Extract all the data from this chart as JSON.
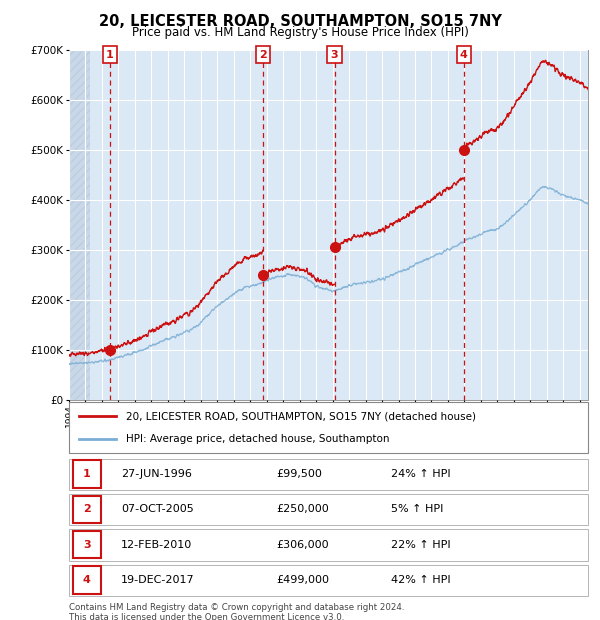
{
  "title": "20, LEICESTER ROAD, SOUTHAMPTON, SO15 7NY",
  "subtitle": "Price paid vs. HM Land Registry's House Price Index (HPI)",
  "footnote": "Contains HM Land Registry data © Crown copyright and database right 2024.\nThis data is licensed under the Open Government Licence v3.0.",
  "legend_line1": "20, LEICESTER ROAD, SOUTHAMPTON, SO15 7NY (detached house)",
  "legend_line2": "HPI: Average price, detached house, Southampton",
  "sales": [
    {
      "num": 1,
      "date_label": "27-JUN-1996",
      "x": 1996.49,
      "price": 99500,
      "pct": "24%",
      "dir": "↑"
    },
    {
      "num": 2,
      "date_label": "07-OCT-2005",
      "x": 2005.77,
      "price": 250000,
      "pct": "5%",
      "dir": "↑"
    },
    {
      "num": 3,
      "date_label": "12-FEB-2010",
      "x": 2010.12,
      "price": 306000,
      "pct": "22%",
      "dir": "↑"
    },
    {
      "num": 4,
      "date_label": "19-DEC-2017",
      "x": 2017.97,
      "price": 499000,
      "pct": "42%",
      "dir": "↑"
    }
  ],
  "table_rows": [
    {
      "num": 1,
      "date": "27-JUN-1996",
      "price": "£99,500",
      "pct": "24% ↑ HPI"
    },
    {
      "num": 2,
      "date": "07-OCT-2005",
      "price": "£250,000",
      "pct": "5% ↑ HPI"
    },
    {
      "num": 3,
      "date": "12-FEB-2010",
      "price": "£306,000",
      "pct": "22% ↑ HPI"
    },
    {
      "num": 4,
      "date": "19-DEC-2017",
      "price": "£499,000",
      "pct": "42% ↑ HPI"
    }
  ],
  "hpi_color": "#7aaed4",
  "price_color": "#cc1111",
  "dot_color": "#cc1111",
  "vline_color": "#cc1111",
  "bg_plot": "#dbe8f5",
  "ylim": [
    0,
    700000
  ],
  "xlim_left": 1994.0,
  "xlim_right": 2025.5,
  "hpi_data_x": [
    1994.0,
    1994.5,
    1995.0,
    1995.5,
    1996.0,
    1996.5,
    1997.0,
    1997.5,
    1998.0,
    1998.5,
    1999.0,
    1999.5,
    2000.0,
    2000.5,
    2001.0,
    2001.5,
    2002.0,
    2002.5,
    2003.0,
    2003.5,
    2004.0,
    2004.5,
    2005.0,
    2005.5,
    2006.0,
    2006.5,
    2007.0,
    2007.5,
    2008.0,
    2008.5,
    2009.0,
    2009.5,
    2010.0,
    2010.5,
    2011.0,
    2011.5,
    2012.0,
    2012.5,
    2013.0,
    2013.5,
    2014.0,
    2014.5,
    2015.0,
    2015.5,
    2016.0,
    2016.5,
    2017.0,
    2017.5,
    2018.0,
    2018.5,
    2019.0,
    2019.5,
    2020.0,
    2020.5,
    2021.0,
    2021.5,
    2022.0,
    2022.5,
    2023.0,
    2023.5,
    2024.0,
    2024.5,
    2025.0
  ],
  "hpi_data_y": [
    72000,
    73000,
    74000,
    76000,
    78000,
    80000,
    85000,
    90000,
    95000,
    100000,
    108000,
    115000,
    122000,
    128000,
    135000,
    142000,
    155000,
    172000,
    188000,
    200000,
    212000,
    222000,
    228000,
    232000,
    238000,
    245000,
    248000,
    250000,
    248000,
    240000,
    228000,
    222000,
    218000,
    222000,
    228000,
    232000,
    235000,
    238000,
    242000,
    248000,
    255000,
    262000,
    270000,
    278000,
    285000,
    292000,
    300000,
    308000,
    318000,
    325000,
    332000,
    338000,
    342000,
    355000,
    370000,
    385000,
    400000,
    420000,
    425000,
    418000,
    410000,
    405000,
    400000
  ]
}
